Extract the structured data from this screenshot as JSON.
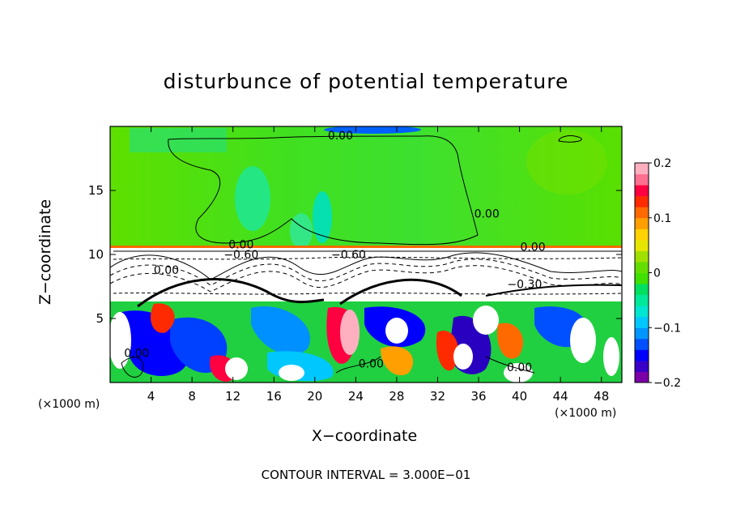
{
  "chart_data": {
    "type": "heatmap",
    "title": "disturbunce of potential temperature",
    "xlabel": "X−coordinate",
    "ylabel": "Z−coordinate",
    "x_unit_left": "(×1000 m)",
    "x_unit_right": "(×1000 m)",
    "footer": "CONTOUR INTERVAL = 3.000E−01",
    "xlim": [
      0,
      50
    ],
    "ylim": [
      0,
      20
    ],
    "x_ticks": [
      4,
      8,
      12,
      16,
      20,
      24,
      28,
      32,
      36,
      40,
      44,
      48
    ],
    "x_tick_labels": [
      "4",
      "8",
      "12",
      "16",
      "20",
      "24",
      "28",
      "32",
      "36",
      "40",
      "44",
      "48"
    ],
    "y_ticks": [
      5,
      10,
      15
    ],
    "y_tick_labels": [
      "5",
      "10",
      "15"
    ],
    "colorbar": {
      "range": [
        -0.2,
        0.2
      ],
      "ticks": [
        -0.2,
        -0.1,
        0,
        0.1,
        0.2
      ],
      "tick_labels": [
        "−0.2",
        "−0.1",
        "0",
        "0.1",
        "0.2"
      ],
      "colors": [
        "#7b00a8",
        "#3a00c8",
        "#0000ff",
        "#0050ff",
        "#0096ff",
        "#00c8ff",
        "#00e6d0",
        "#00e89a",
        "#00e060",
        "#40e000",
        "#66dd00",
        "#a0e000",
        "#e6e600",
        "#ffd200",
        "#ffa000",
        "#ff6a00",
        "#ff2a00",
        "#ff0040",
        "#ff7090",
        "#ffb0c0"
      ]
    },
    "contour_labels": [
      {
        "text": "0.00",
        "x": 22.5,
        "y": 19.3
      },
      {
        "text": "0.00",
        "x": 36.8,
        "y": 13.2
      },
      {
        "text": "0.00",
        "x": 12.8,
        "y": 10.8
      },
      {
        "text": "−0.60",
        "x": 12.8,
        "y": 10.0
      },
      {
        "text": "−0.60",
        "x": 23.3,
        "y": 10.0
      },
      {
        "text": "0.00",
        "x": 41.3,
        "y": 10.6
      },
      {
        "text": "0.00",
        "x": 5.5,
        "y": 8.8
      },
      {
        "text": "−0.30",
        "x": 40.5,
        "y": 7.7
      },
      {
        "text": "0.00",
        "x": 2.6,
        "y": 2.3
      },
      {
        "text": "0.00",
        "x": 25.5,
        "y": 1.5
      },
      {
        "text": "0.00",
        "x": 40.0,
        "y": 1.2
      }
    ],
    "field_description_regions": {
      "stratosphere_value": 0.02,
      "upper_band_min": -0.6,
      "lower_layer_range": [
        -0.2,
        0.2
      ]
    }
  }
}
